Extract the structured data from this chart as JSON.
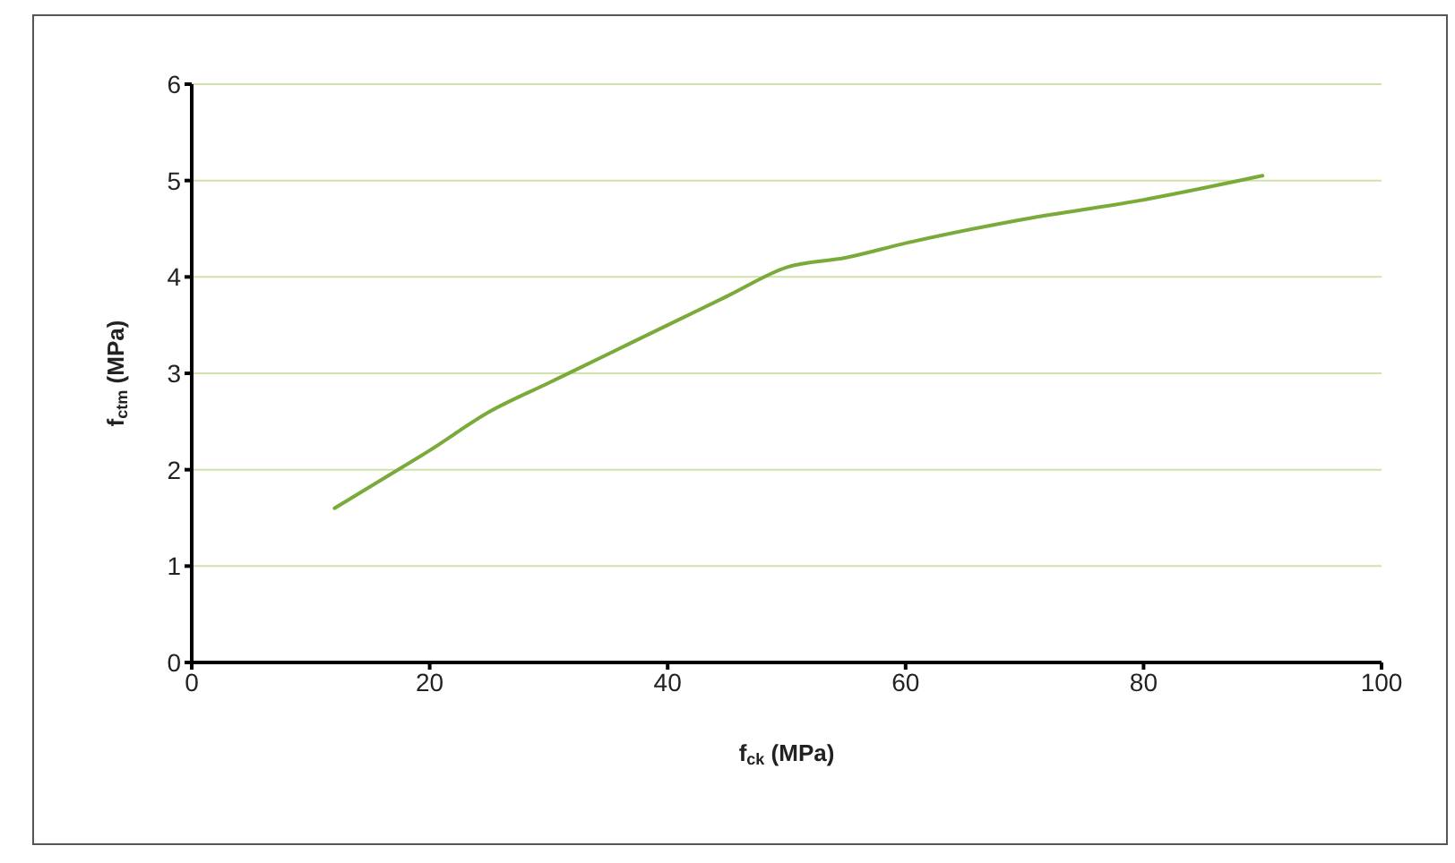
{
  "chart_data": {
    "type": "line",
    "xlabel": "f$_{ck}$ (MPa)",
    "ylabel": "f$_{ctm}$ (MPa)",
    "x": [
      12,
      16,
      20,
      25,
      30,
      35,
      40,
      45,
      50,
      55,
      60,
      70,
      80,
      90
    ],
    "series": [
      {
        "color": "#7aab3a",
        "values": [
          1.6,
          1.9,
          2.2,
          2.6,
          2.9,
          3.2,
          3.5,
          3.8,
          4.1,
          4.2,
          4.35,
          4.6,
          4.8,
          5.05
        ]
      }
    ],
    "xlim": [
      0,
      100
    ],
    "xticks": [
      0,
      20,
      40,
      60,
      80,
      100
    ],
    "ylim": [
      0,
      6
    ],
    "yticks": [
      0,
      1,
      2,
      3,
      4,
      5,
      6
    ],
    "grid": "y",
    "marker": "none",
    "line_style": "solid"
  }
}
